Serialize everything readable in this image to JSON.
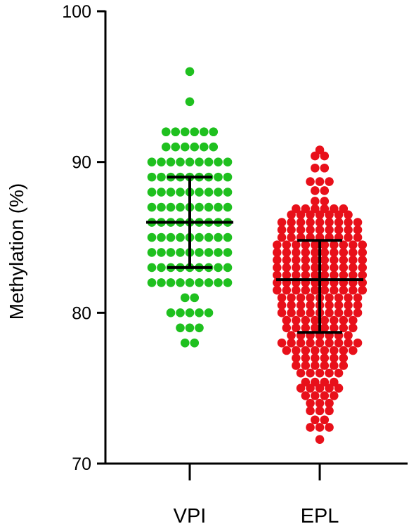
{
  "chart_data": {
    "type": "scatter",
    "subtype": "dot plot with mean and standard deviation",
    "title": "",
    "xlabel": "",
    "ylabel": "Methylation (%)",
    "ylim": [
      70,
      100
    ],
    "yticks": [
      70,
      80,
      90,
      100
    ],
    "categories": [
      "VPI",
      "EPL"
    ],
    "grid": false,
    "legend": "none",
    "series": [
      {
        "category": "VPI",
        "color": "#1fc01f",
        "mean": 86,
        "error_low": 83,
        "error_high": 89,
        "points": [
          {
            "value": 96,
            "count": 1
          },
          {
            "value": 94,
            "count": 1
          },
          {
            "value": 92,
            "count": 6
          },
          {
            "value": 91,
            "count": 6
          },
          {
            "value": 90,
            "count": 9
          },
          {
            "value": 89,
            "count": 9
          },
          {
            "value": 88,
            "count": 9
          },
          {
            "value": 87,
            "count": 9
          },
          {
            "value": 86,
            "count": 9
          },
          {
            "value": 85,
            "count": 9
          },
          {
            "value": 84,
            "count": 9
          },
          {
            "value": 83,
            "count": 9
          },
          {
            "value": 82,
            "count": 9
          },
          {
            "value": 81,
            "count": 2
          },
          {
            "value": 80,
            "count": 5
          },
          {
            "value": 79,
            "count": 3
          },
          {
            "value": 78,
            "count": 2
          }
        ]
      },
      {
        "category": "EPL",
        "color": "#e8101a",
        "mean": 82.2,
        "error_low": 78.7,
        "error_high": 84.8,
        "points": [
          {
            "value": 90.8,
            "count": 1
          },
          {
            "value": 90.4,
            "count": 2
          },
          {
            "value": 89.6,
            "count": 2
          },
          {
            "value": 88.7,
            "count": 3
          },
          {
            "value": 88.1,
            "count": 2
          },
          {
            "value": 87.4,
            "count": 2
          },
          {
            "value": 86.9,
            "count": 6
          },
          {
            "value": 86.5,
            "count": 7
          },
          {
            "value": 86.0,
            "count": 9
          },
          {
            "value": 85.5,
            "count": 9
          },
          {
            "value": 85.0,
            "count": 9
          },
          {
            "value": 84.5,
            "count": 10
          },
          {
            "value": 84.0,
            "count": 10
          },
          {
            "value": 83.5,
            "count": 10
          },
          {
            "value": 83.0,
            "count": 10
          },
          {
            "value": 82.5,
            "count": 10
          },
          {
            "value": 82.0,
            "count": 10
          },
          {
            "value": 81.5,
            "count": 10
          },
          {
            "value": 81.0,
            "count": 9
          },
          {
            "value": 80.5,
            "count": 9
          },
          {
            "value": 80.0,
            "count": 9
          },
          {
            "value": 79.5,
            "count": 8
          },
          {
            "value": 79.0,
            "count": 8
          },
          {
            "value": 78.5,
            "count": 7
          },
          {
            "value": 78.0,
            "count": 9
          },
          {
            "value": 77.5,
            "count": 8
          },
          {
            "value": 77.0,
            "count": 6
          },
          {
            "value": 76.5,
            "count": 6
          },
          {
            "value": 76.0,
            "count": 5
          },
          {
            "value": 75.4,
            "count": 4
          },
          {
            "value": 75.0,
            "count": 5
          },
          {
            "value": 74.5,
            "count": 4
          },
          {
            "value": 74.0,
            "count": 3
          },
          {
            "value": 73.5,
            "count": 3
          },
          {
            "value": 72.9,
            "count": 2
          },
          {
            "value": 72.4,
            "count": 3
          },
          {
            "value": 71.6,
            "count": 1
          }
        ]
      }
    ]
  }
}
